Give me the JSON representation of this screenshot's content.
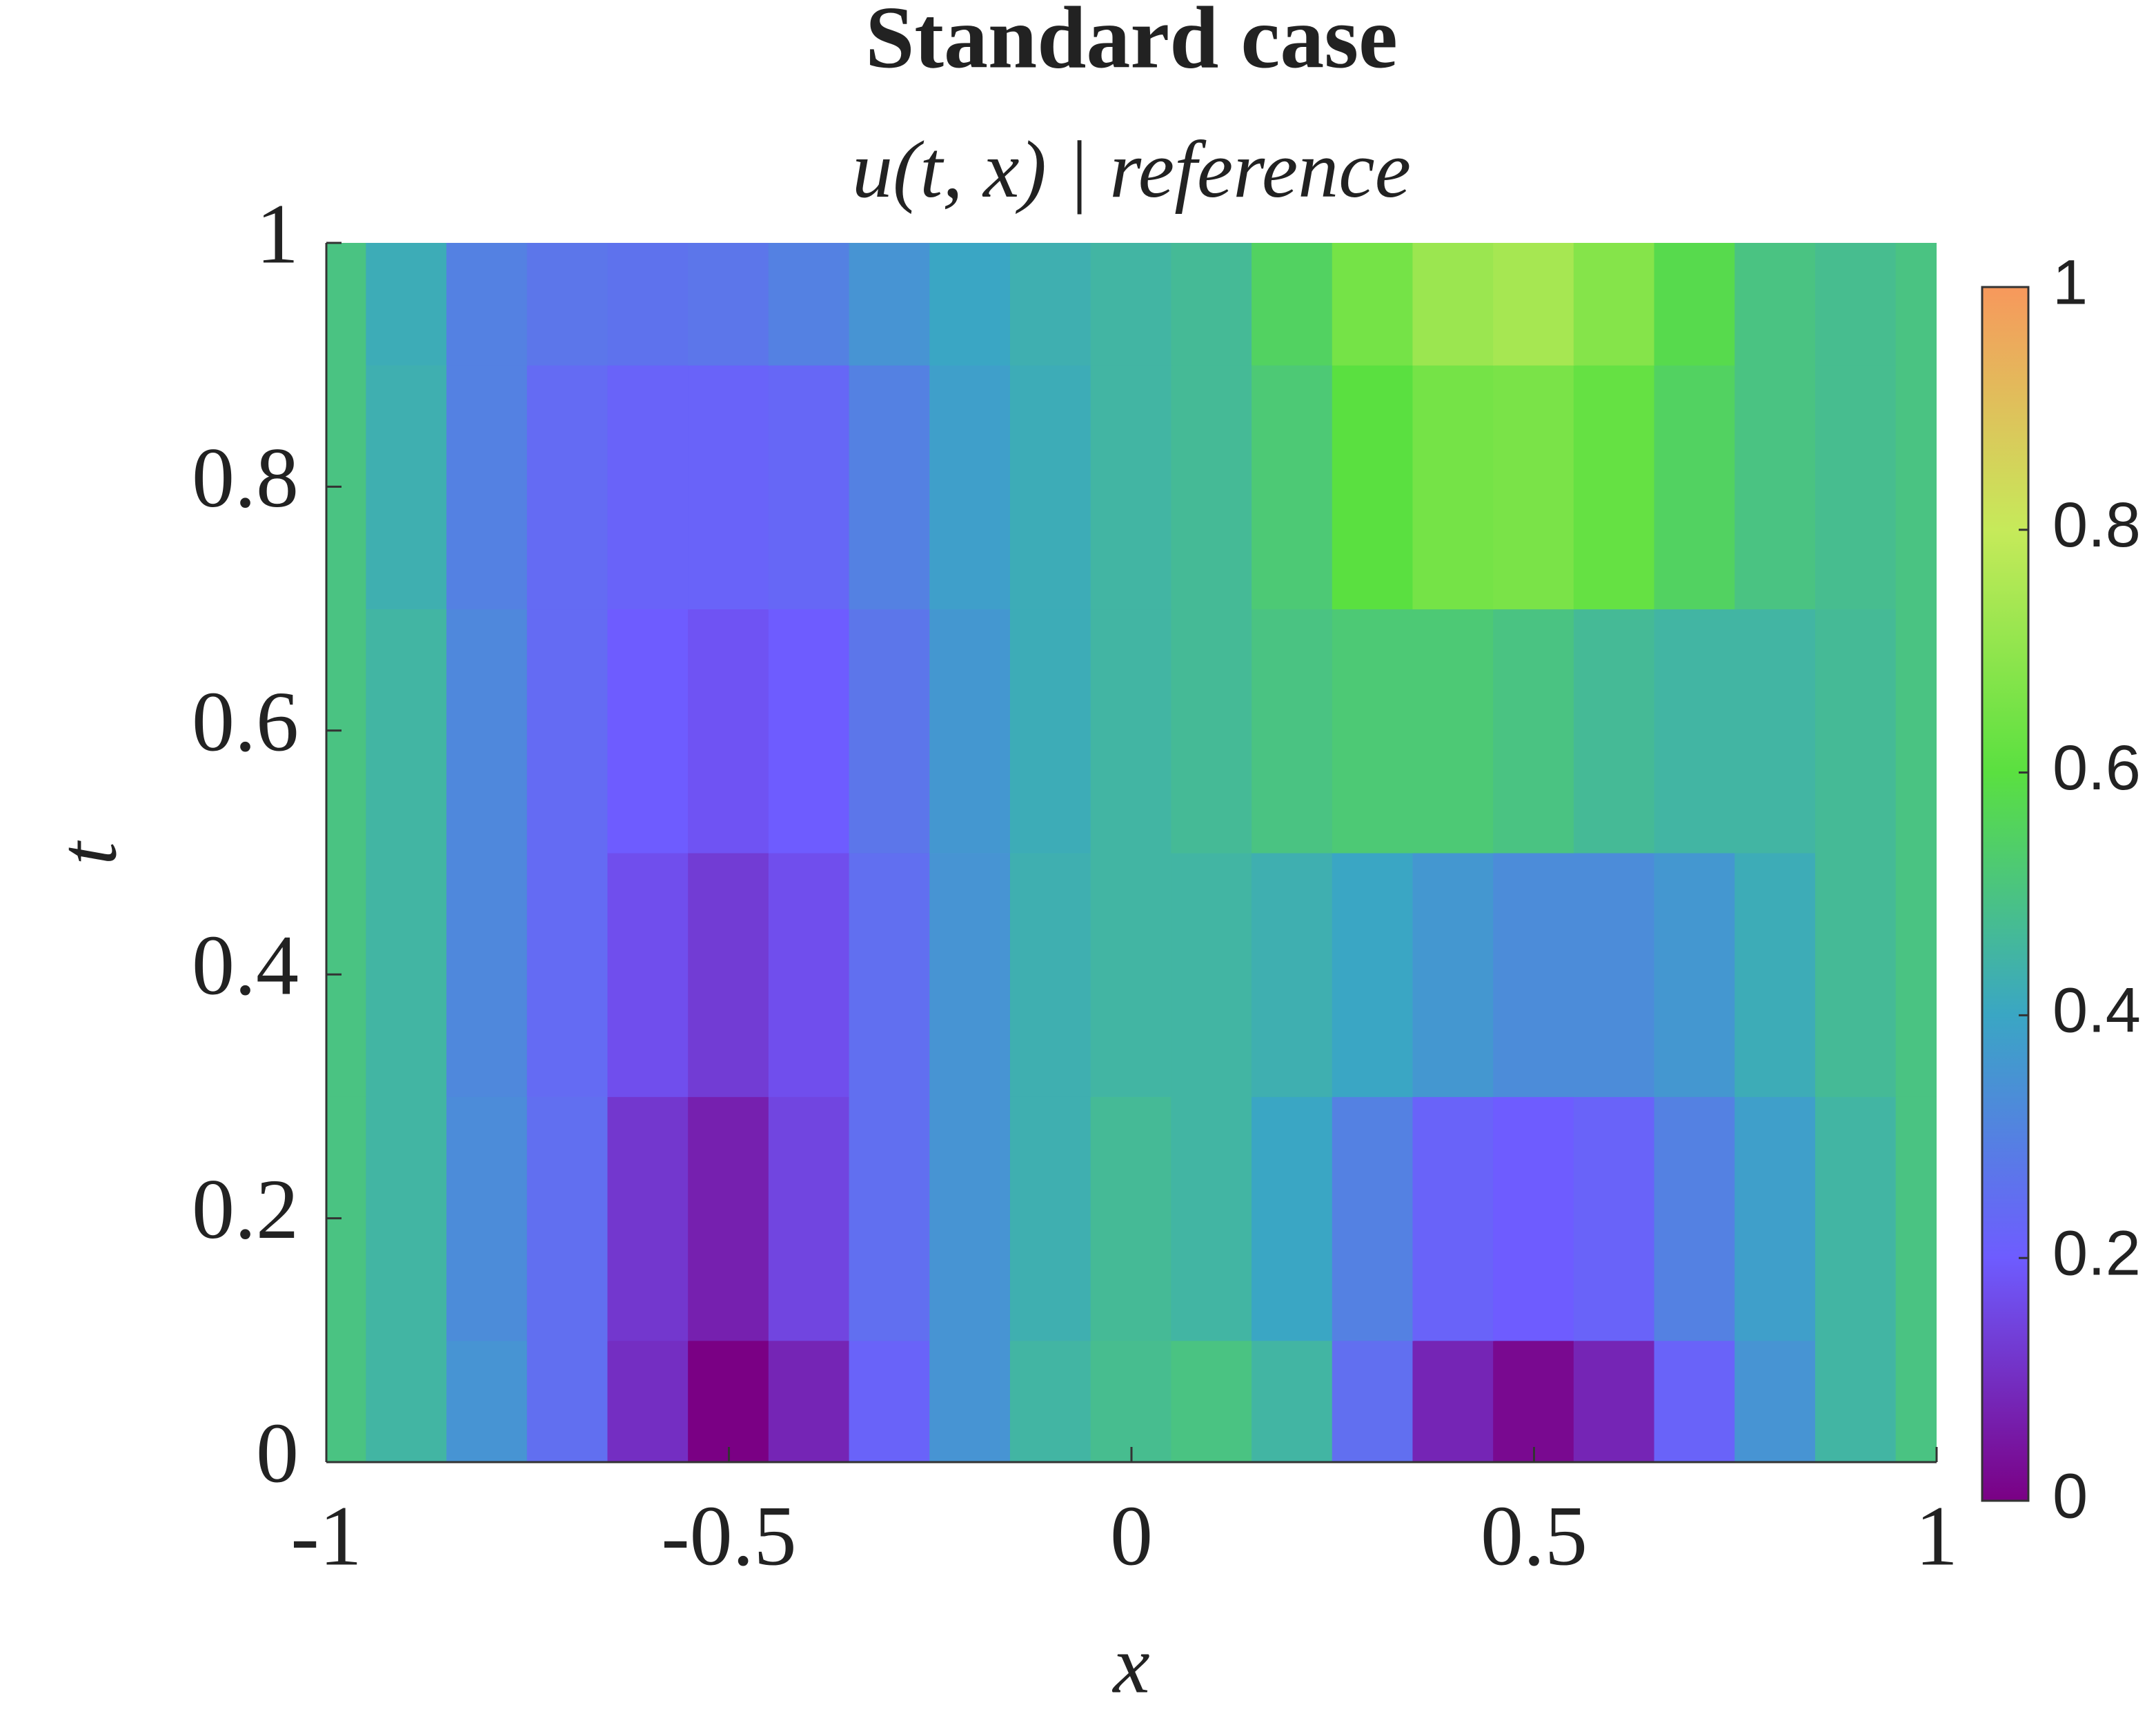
{
  "chart_data": {
    "type": "heatmap",
    "title": "Standard case",
    "subtitle": "u(t, x) | reference",
    "xlabel": "x",
    "ylabel": "t",
    "x": [
      -1,
      -0.9,
      -0.8,
      -0.7,
      -0.6,
      -0.5,
      -0.4,
      -0.3,
      -0.2,
      -0.1,
      0,
      0.1,
      0.2,
      0.3,
      0.4,
      0.5,
      0.6,
      0.7,
      0.8,
      0.9,
      1
    ],
    "y": [
      0,
      0.2,
      0.4,
      0.6,
      0.8,
      1
    ],
    "values": [
      [
        0.5,
        0.45,
        0.35,
        0.25,
        0.1,
        0.0,
        0.08,
        0.22,
        0.35,
        0.45,
        0.48,
        0.5,
        0.45,
        0.25,
        0.08,
        0.02,
        0.08,
        0.22,
        0.35,
        0.45,
        0.5
      ],
      [
        0.5,
        0.45,
        0.33,
        0.25,
        0.12,
        0.07,
        0.15,
        0.25,
        0.35,
        0.43,
        0.47,
        0.45,
        0.4,
        0.3,
        0.22,
        0.2,
        0.22,
        0.3,
        0.38,
        0.45,
        0.5
      ],
      [
        0.5,
        0.45,
        0.32,
        0.24,
        0.17,
        0.13,
        0.17,
        0.25,
        0.35,
        0.43,
        0.45,
        0.45,
        0.43,
        0.4,
        0.36,
        0.33,
        0.33,
        0.36,
        0.42,
        0.47,
        0.5
      ],
      [
        0.5,
        0.45,
        0.32,
        0.24,
        0.2,
        0.18,
        0.2,
        0.27,
        0.36,
        0.42,
        0.45,
        0.47,
        0.5,
        0.52,
        0.52,
        0.5,
        0.47,
        0.45,
        0.45,
        0.47,
        0.5
      ],
      [
        0.5,
        0.43,
        0.3,
        0.24,
        0.22,
        0.22,
        0.23,
        0.3,
        0.38,
        0.42,
        0.45,
        0.47,
        0.52,
        0.6,
        0.65,
        0.66,
        0.62,
        0.55,
        0.5,
        0.48,
        0.5
      ],
      [
        0.5,
        0.42,
        0.3,
        0.27,
        0.26,
        0.27,
        0.3,
        0.35,
        0.4,
        0.43,
        0.45,
        0.47,
        0.55,
        0.65,
        0.72,
        0.74,
        0.68,
        0.58,
        0.5,
        0.48,
        0.5
      ]
    ],
    "xlim": [
      -1,
      1
    ],
    "ylim": [
      0,
      1
    ],
    "xticks": [
      -1,
      -0.5,
      0,
      0.5,
      1
    ],
    "yticks": [
      0,
      0.2,
      0.4,
      0.6,
      0.8,
      1
    ],
    "clim": [
      0,
      1
    ],
    "cticks": [
      0,
      0.2,
      0.4,
      0.6,
      0.8,
      1
    ],
    "colormap": [
      "#7a0084",
      "#6e5cff",
      "#3aa6c4",
      "#5ae040",
      "#c6ea5a",
      "#f7985c"
    ]
  }
}
